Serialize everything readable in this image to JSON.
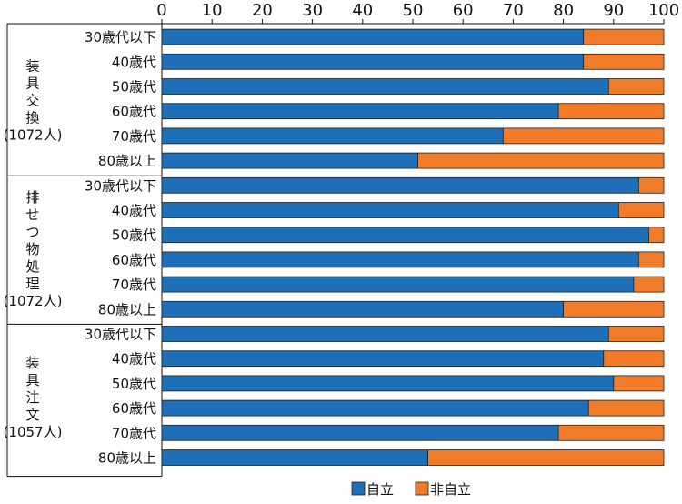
{
  "chart_data": {
    "type": "bar",
    "orientation": "horizontal",
    "stacked": true,
    "xlim": [
      0,
      100
    ],
    "xticks": [
      "0",
      "10",
      "20",
      "30",
      "40",
      "50",
      "60",
      "70",
      "80",
      "90",
      "100"
    ],
    "legend": {
      "position": "bottom-center",
      "entries": [
        "自立",
        "非自立"
      ]
    },
    "colors": {
      "自立": "#1f6fb8",
      "非自立": "#f07c2a"
    },
    "groups": [
      {
        "label": [
          "装",
          "具",
          "交",
          "換",
          "(1072人)"
        ],
        "categories": [
          "30歳代以下",
          "40歳代",
          "50歳代",
          "60歳代",
          "70歳代",
          "80歳以上"
        ],
        "series": [
          {
            "name": "自立",
            "values": [
              84,
              84,
              89,
              79,
              68,
              51
            ]
          },
          {
            "name": "非自立",
            "values": [
              16,
              16,
              11,
              21,
              32,
              49
            ]
          }
        ]
      },
      {
        "label": [
          "排",
          "せ",
          "つ",
          "物",
          "処",
          "理",
          "(1072人)"
        ],
        "categories": [
          "30歳代以下",
          "40歳代",
          "50歳代",
          "60歳代",
          "70歳代",
          "80歳以上"
        ],
        "series": [
          {
            "name": "自立",
            "values": [
              95,
              91,
              97,
              95,
              94,
              80
            ]
          },
          {
            "name": "非自立",
            "values": [
              5,
              9,
              3,
              5,
              6,
              20
            ]
          }
        ]
      },
      {
        "label": [
          "装",
          "具",
          "注",
          "文",
          "(1057人)"
        ],
        "categories": [
          "30歳代以下",
          "40歳代",
          "50歳代",
          "60歳代",
          "70歳代",
          "80歳以上"
        ],
        "series": [
          {
            "name": "自立",
            "values": [
              89,
              88,
              90,
              85,
              79,
              53
            ]
          },
          {
            "name": "非自立",
            "values": [
              11,
              12,
              10,
              15,
              21,
              47
            ]
          }
        ]
      }
    ]
  }
}
